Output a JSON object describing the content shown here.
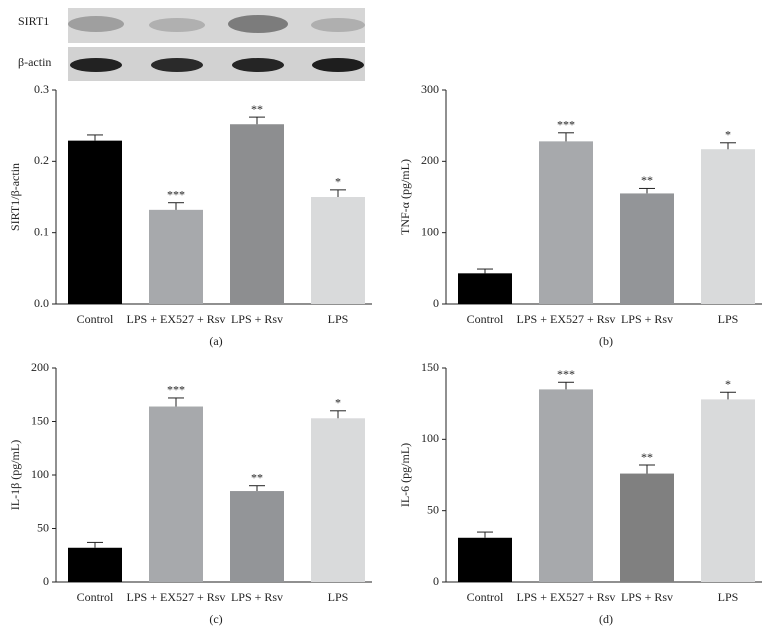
{
  "chart_data": [
    {
      "type": "bar",
      "blot_labels": [
        "SIRT1",
        "β-actin"
      ],
      "ylabel": "SIRT1/β-actin",
      "label": "(a)",
      "categories": [
        "Control",
        "LPS + EX527 + Rsv",
        "LPS + Rsv",
        "LPS"
      ],
      "values": [
        0.229,
        0.132,
        0.252,
        0.15
      ],
      "errors": [
        0.008,
        0.01,
        0.01,
        0.01
      ],
      "annotations": [
        null,
        "***",
        "**",
        "*"
      ],
      "colors": [
        "#000000",
        "#a7a9ac",
        "#8d8e90",
        "#d9dadb"
      ],
      "ylim": [
        0,
        0.3
      ],
      "yticks": [
        0.0,
        0.1,
        0.2,
        0.3
      ]
    },
    {
      "type": "bar",
      "ylabel": "TNF-α (pg/mL)",
      "label": "(b)",
      "categories": [
        "Control",
        "LPS + EX527 + Rsv",
        "LPS + Rsv",
        "LPS"
      ],
      "values": [
        43,
        228,
        155,
        217
      ],
      "errors": [
        6,
        12,
        7,
        9
      ],
      "annotations": [
        null,
        "***",
        "**",
        "*"
      ],
      "colors": [
        "#000000",
        "#a7a9ac",
        "#939598",
        "#d9dadb"
      ],
      "ylim": [
        0,
        300
      ],
      "yticks": [
        0,
        100,
        200,
        300
      ]
    },
    {
      "type": "bar",
      "ylabel": "IL-1β (pg/mL)",
      "label": "(c)",
      "categories": [
        "Control",
        "LPS + EX527 + Rsv",
        "LPS + Rsv",
        "LPS"
      ],
      "values": [
        32,
        164,
        85,
        153
      ],
      "errors": [
        5,
        8,
        5,
        7
      ],
      "annotations": [
        null,
        "***",
        "**",
        "*"
      ],
      "colors": [
        "#000000",
        "#a7a9ac",
        "#939598",
        "#d9dadb"
      ],
      "ylim": [
        0,
        200
      ],
      "yticks": [
        0,
        50,
        100,
        150,
        200
      ]
    },
    {
      "type": "bar",
      "ylabel": "IL-6 (pg/mL)",
      "label": "(d)",
      "categories": [
        "Control",
        "LPS + EX527 + Rsv",
        "LPS + Rsv",
        "LPS"
      ],
      "values": [
        31,
        135,
        76,
        128
      ],
      "errors": [
        4,
        5,
        6,
        5
      ],
      "annotations": [
        null,
        "***",
        "**",
        "*"
      ],
      "colors": [
        "#000000",
        "#a7a9ac",
        "#808080",
        "#d9dadb"
      ],
      "ylim": [
        0,
        150
      ],
      "yticks": [
        0,
        50,
        100,
        150
      ]
    }
  ]
}
